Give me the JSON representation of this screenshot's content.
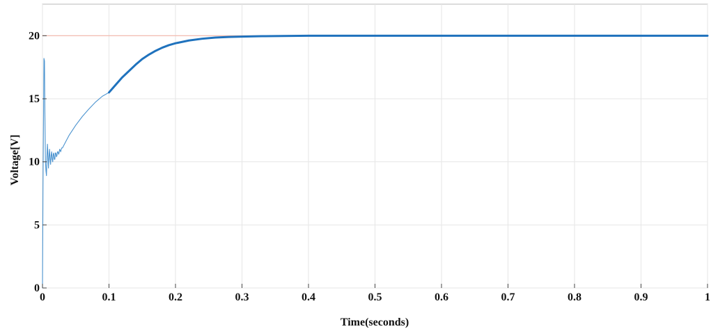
{
  "chart_data": {
    "type": "line",
    "title": "",
    "xlabel": "Time(seconds)",
    "ylabel": "Voltage[V]",
    "xlim": [
      0,
      1
    ],
    "ylim": [
      0,
      22.5
    ],
    "xticks": [
      0,
      0.1,
      0.2,
      0.3,
      0.4,
      0.5,
      0.6,
      0.7,
      0.8,
      0.9,
      1
    ],
    "xtick_labels": [
      "0",
      "0.1",
      "0.2",
      "0.3",
      "0.4",
      "0.5",
      "0.6",
      "0.7",
      "0.8",
      "0.9",
      "1"
    ],
    "yticks": [
      0,
      5,
      10,
      15,
      20
    ],
    "ytick_labels": [
      "0",
      "5",
      "10",
      "15",
      "20"
    ],
    "grid": true,
    "legend": "none",
    "series": [
      {
        "role": "reference",
        "color": "#f4b6a8",
        "x": [
          0,
          1
        ],
        "y": [
          20,
          20
        ]
      },
      {
        "role": "response",
        "color": "#4b93cf",
        "x": [
          0,
          0.0008,
          0.0015,
          0.0022,
          0.003,
          0.0037,
          0.0045,
          0.0052,
          0.006,
          0.0068,
          0.0075,
          0.0083,
          0.009,
          0.0098,
          0.0106,
          0.0114,
          0.0122,
          0.013,
          0.0138,
          0.0146,
          0.0154,
          0.0162,
          0.017,
          0.0178,
          0.0186,
          0.0194,
          0.0202,
          0.021,
          0.0218,
          0.0226,
          0.0234,
          0.0242,
          0.025,
          0.0258,
          0.0266,
          0.0274,
          0.0282,
          0.029,
          0.03,
          0.032,
          0.035,
          0.04,
          0.05,
          0.06,
          0.07,
          0.08,
          0.09,
          0.1
        ],
        "y": [
          0,
          8.0,
          13.0,
          18.2,
          18.0,
          13.5,
          10.0,
          9.3,
          8.9,
          10.5,
          11.4,
          10.4,
          9.5,
          10.4,
          11.0,
          10.2,
          9.8,
          10.5,
          10.8,
          10.2,
          10.0,
          10.6,
          10.7,
          10.2,
          10.2,
          10.7,
          10.7,
          10.4,
          10.5,
          10.8,
          10.8,
          10.6,
          10.7,
          11.0,
          10.9,
          10.8,
          11.0,
          11.1,
          11.1,
          11.3,
          11.6,
          12.1,
          12.9,
          13.6,
          14.2,
          14.75,
          15.2,
          15.5
        ]
      },
      {
        "role": "response-settling",
        "color": "#1f72bd",
        "x": [
          0.1,
          0.11,
          0.12,
          0.13,
          0.14,
          0.15,
          0.16,
          0.17,
          0.18,
          0.19,
          0.2,
          0.22,
          0.24,
          0.26,
          0.28,
          0.3,
          0.33,
          0.36,
          0.4,
          0.5,
          0.6,
          0.7,
          0.8,
          0.9,
          1.0
        ],
        "y": [
          15.5,
          16.1,
          16.7,
          17.2,
          17.7,
          18.15,
          18.5,
          18.8,
          19.05,
          19.25,
          19.4,
          19.62,
          19.76,
          19.85,
          19.9,
          19.93,
          19.96,
          19.98,
          20.0,
          20.0,
          20.0,
          20.0,
          20.0,
          20.0,
          20.0
        ]
      }
    ]
  }
}
